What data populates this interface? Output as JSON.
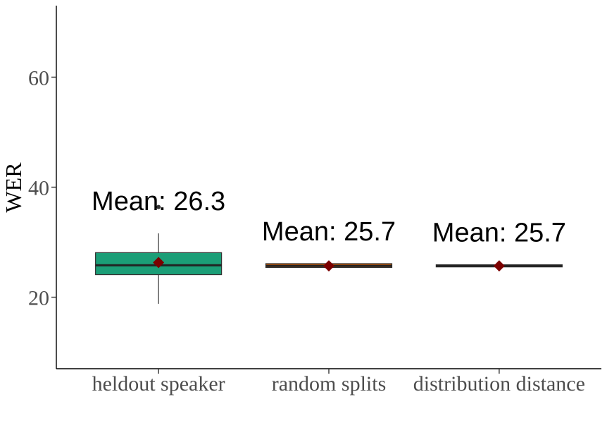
{
  "chart_data": {
    "type": "box",
    "title": "",
    "xlabel": "",
    "ylabel": "WER",
    "ylim": [
      7,
      73
    ],
    "yticks": [
      20,
      40,
      60
    ],
    "grid": false,
    "categories": [
      "heldout speaker",
      "random splits",
      "distribution distance"
    ],
    "boxes": [
      {
        "category": "heldout speaker",
        "q1": 24.1,
        "median": 25.8,
        "q3": 28.1,
        "whisker_low": 18.8,
        "whisker_high": 31.6,
        "outliers": [
          36.4
        ],
        "mean": 26.3,
        "mean_label": "Mean: 26.3",
        "color": "#1b9e77"
      },
      {
        "category": "random splits",
        "q1": 25.4,
        "median": 25.7,
        "q3": 26.1,
        "whisker_low": 25.4,
        "whisker_high": 26.1,
        "outliers": [],
        "mean": 25.7,
        "mean_label": "Mean: 25.7",
        "color": "#d95f02"
      },
      {
        "category": "distribution distance",
        "q1": 25.5,
        "median": 25.7,
        "q3": 25.9,
        "whisker_low": 25.5,
        "whisker_high": 25.9,
        "outliers": [],
        "mean": 25.7,
        "mean_label": "Mean: 25.7",
        "color": "#7570b3"
      }
    ],
    "mean_marker_color": "#7b0000"
  }
}
